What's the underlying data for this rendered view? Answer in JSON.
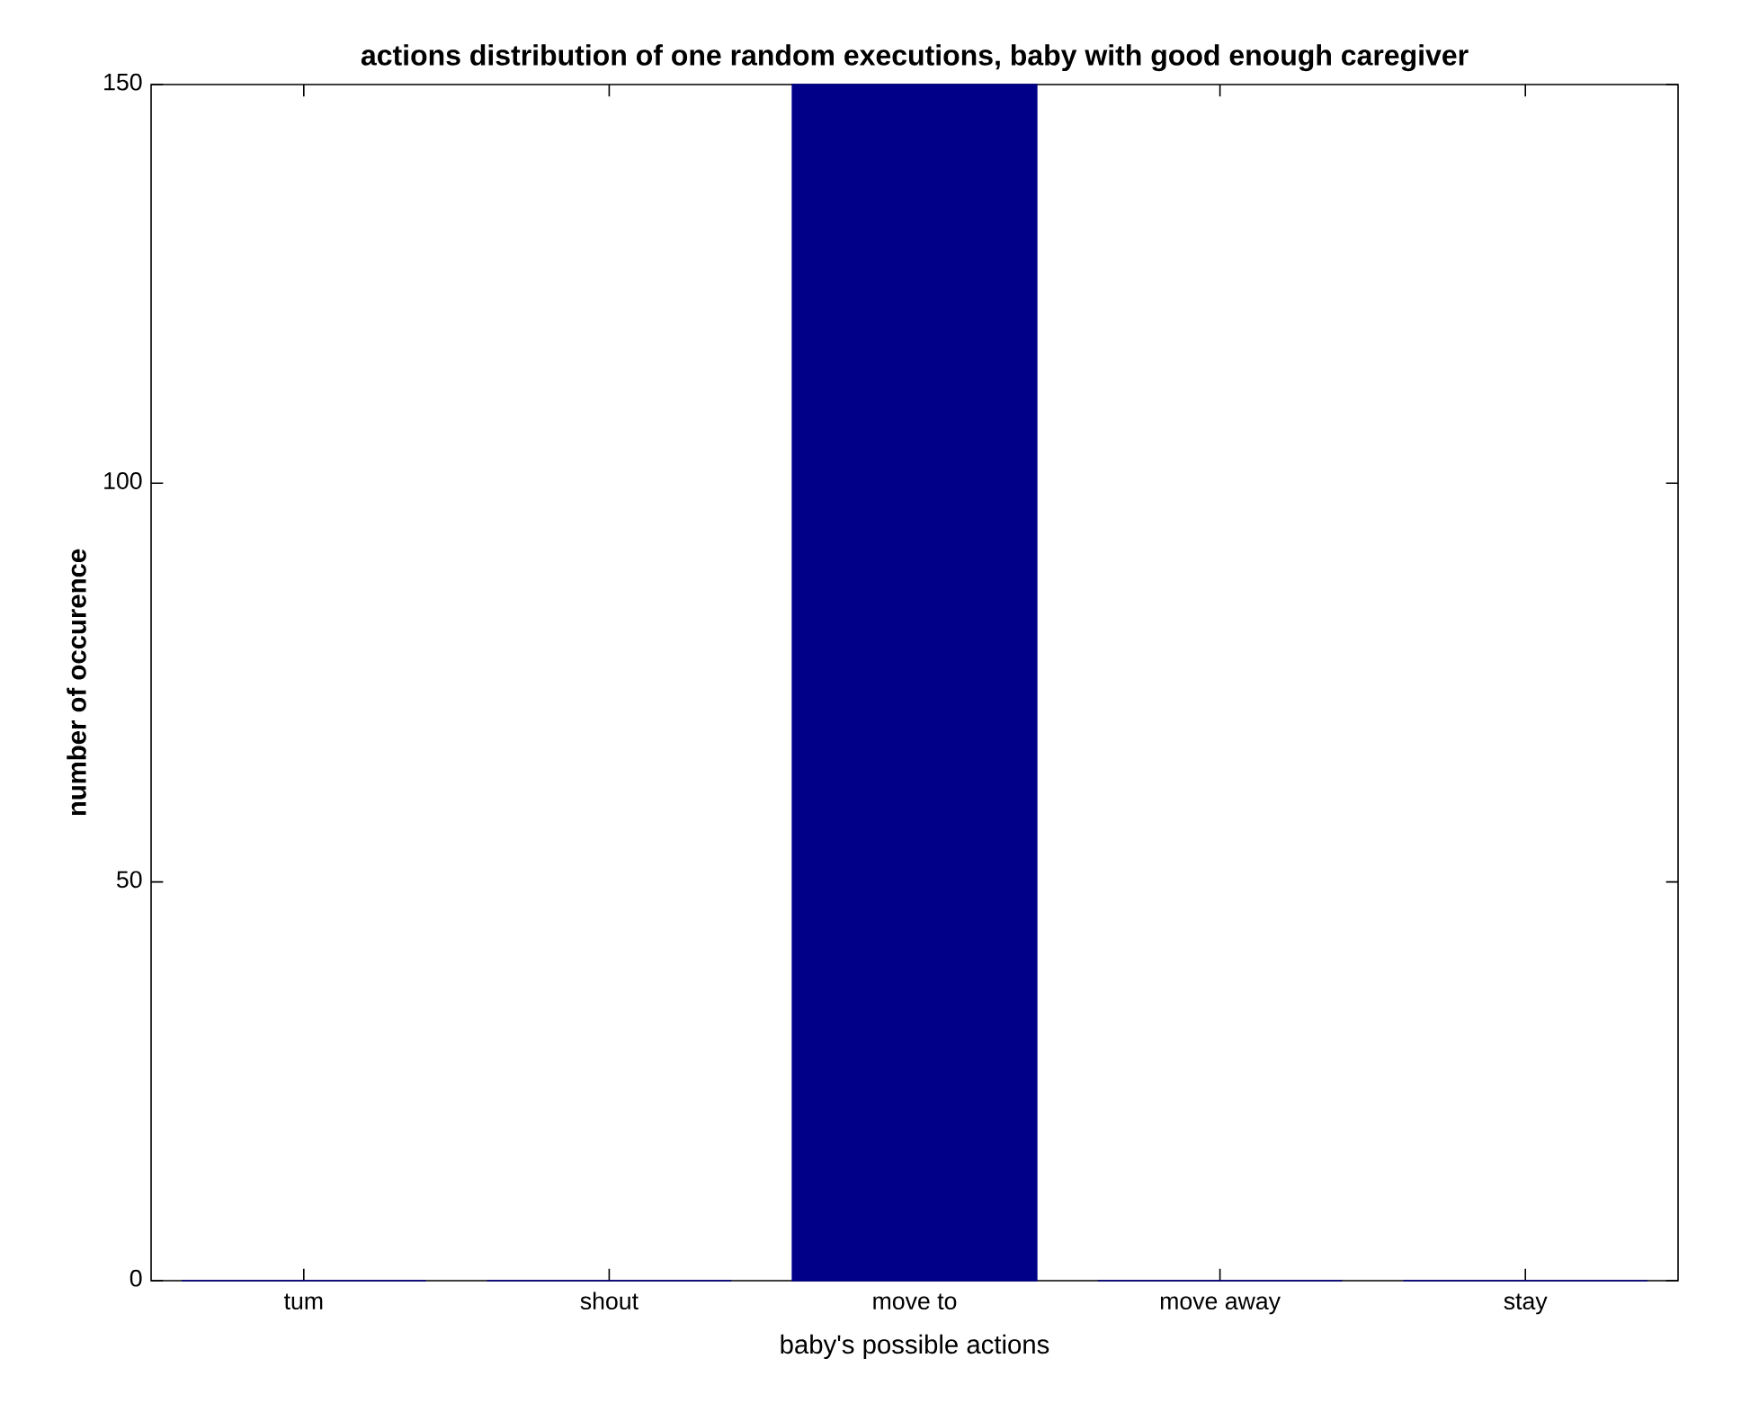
{
  "chart_data": {
    "type": "bar",
    "title": "actions distribution of one random executions, baby with good enough caregiver",
    "xlabel": "baby's possible actions",
    "ylabel": "number of occurence",
    "categories": [
      "tum",
      "shout",
      "move to",
      "move away",
      "stay"
    ],
    "values": [
      0,
      0,
      150,
      0,
      0
    ],
    "color": "#000088",
    "ylim": [
      0,
      150
    ],
    "yticks": [
      0,
      50,
      100,
      150
    ]
  }
}
